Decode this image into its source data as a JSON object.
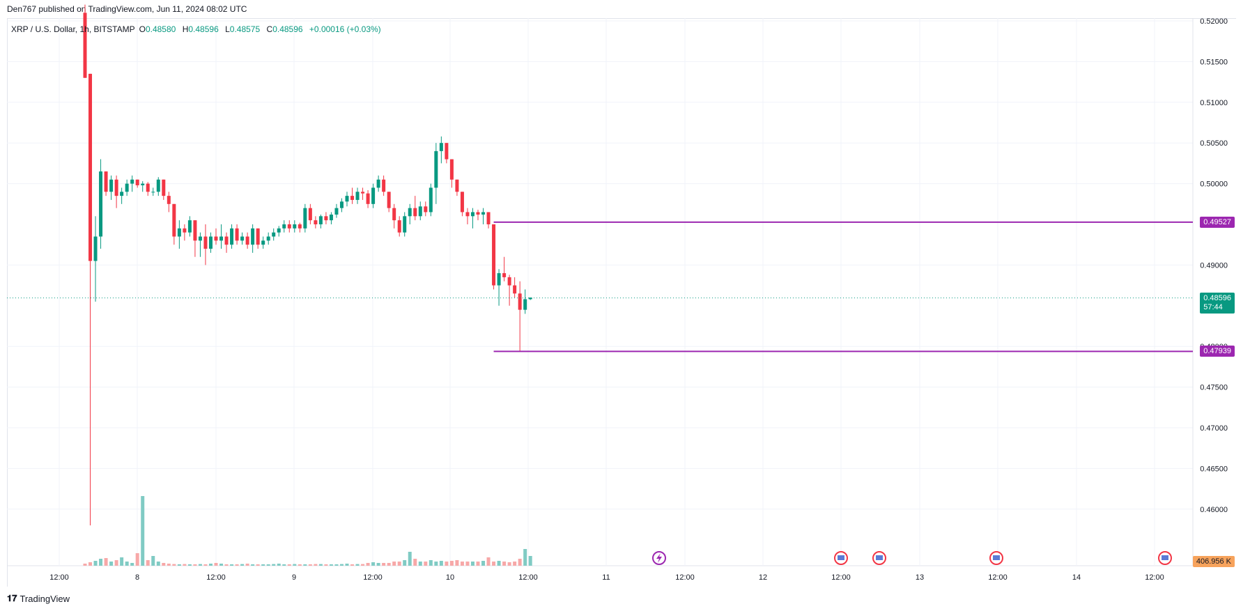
{
  "header": {
    "published": "Den767 published on TradingView.com, Jun 11, 2024 08:02 UTC"
  },
  "legend": {
    "symbol": "XRP / U.S. Dollar, 1h, BITSTAMP",
    "o_label": "O",
    "o_value": "0.48580",
    "h_label": "H",
    "h_value": "0.48596",
    "l_label": "L",
    "l_value": "0.48575",
    "c_label": "C",
    "c_value": "0.48596",
    "change": "+0.00016 (+0.03%)"
  },
  "price_axis": {
    "ticks": [
      "0.52000",
      "0.51500",
      "0.51000",
      "0.50500",
      "0.50000",
      "0.49000",
      "0.48000",
      "0.47500",
      "0.47000",
      "0.46500",
      "0.46000"
    ]
  },
  "time_axis": {
    "ticks": [
      "12:00",
      "8",
      "12:00",
      "9",
      "12:00",
      "10",
      "12:00",
      "11",
      "12:00",
      "12",
      "12:00",
      "13",
      "12:00",
      "14",
      "12:00"
    ]
  },
  "tags": {
    "upper_level": "0.49527",
    "last_price": "0.48596",
    "countdown": "57:44",
    "lower_level": "0.47939",
    "volume": "406.956 K"
  },
  "colors": {
    "up": "#089981",
    "down": "#f23645",
    "level_line": "#9c27b0",
    "vol_up": "#80cbc4",
    "vol_down": "#f7a8a8",
    "grid": "#f0f3fa"
  },
  "footer": {
    "brand": "TradingView"
  },
  "chart_data": {
    "type": "candlestick",
    "symbol": "XRP/USD",
    "interval": "1h",
    "ylim": [
      0.4575,
      0.52
    ],
    "upper_level": 0.49527,
    "lower_level": 0.47939,
    "last_price": 0.48596,
    "candles": [
      [
        0.521,
        0.522,
        0.513,
        0.513
      ],
      [
        0.5135,
        0.5135,
        0.458,
        0.4905
      ],
      [
        0.4905,
        0.496,
        0.4855,
        0.4935
      ],
      [
        0.4935,
        0.503,
        0.492,
        0.5015
      ],
      [
        0.5015,
        0.5015,
        0.4985,
        0.499
      ],
      [
        0.499,
        0.501,
        0.498,
        0.5005
      ],
      [
        0.5005,
        0.501,
        0.497,
        0.4985
      ],
      [
        0.4985,
        0.4995,
        0.4975,
        0.499
      ],
      [
        0.499,
        0.5005,
        0.4985,
        0.5
      ],
      [
        0.5,
        0.501,
        0.499,
        0.5005
      ],
      [
        0.5005,
        0.5005,
        0.4995,
        0.4998
      ],
      [
        0.4998,
        0.5003,
        0.499,
        0.5
      ],
      [
        0.5,
        0.5002,
        0.4985,
        0.499
      ],
      [
        0.499,
        0.4995,
        0.4985,
        0.499
      ],
      [
        0.499,
        0.5008,
        0.4985,
        0.5005
      ],
      [
        0.5005,
        0.5005,
        0.498,
        0.4985
      ],
      [
        0.4985,
        0.499,
        0.4965,
        0.4975
      ],
      [
        0.4975,
        0.4975,
        0.4925,
        0.4935
      ],
      [
        0.4935,
        0.4955,
        0.492,
        0.4945
      ],
      [
        0.4945,
        0.495,
        0.493,
        0.494
      ],
      [
        0.494,
        0.496,
        0.4935,
        0.4955
      ],
      [
        0.4955,
        0.4955,
        0.491,
        0.493
      ],
      [
        0.493,
        0.494,
        0.491,
        0.4935
      ],
      [
        0.4935,
        0.495,
        0.49,
        0.492
      ],
      [
        0.492,
        0.494,
        0.4915,
        0.4935
      ],
      [
        0.4935,
        0.4945,
        0.4925,
        0.493
      ],
      [
        0.493,
        0.495,
        0.492,
        0.4935
      ],
      [
        0.4935,
        0.494,
        0.4915,
        0.4925
      ],
      [
        0.4925,
        0.495,
        0.492,
        0.4945
      ],
      [
        0.4945,
        0.495,
        0.4925,
        0.493
      ],
      [
        0.493,
        0.494,
        0.4925,
        0.4935
      ],
      [
        0.4935,
        0.494,
        0.492,
        0.4925
      ],
      [
        0.4925,
        0.495,
        0.4915,
        0.4945
      ],
      [
        0.4945,
        0.4945,
        0.492,
        0.4925
      ],
      [
        0.4925,
        0.4935,
        0.492,
        0.493
      ],
      [
        0.493,
        0.494,
        0.4925,
        0.4935
      ],
      [
        0.4935,
        0.4945,
        0.493,
        0.494
      ],
      [
        0.494,
        0.4948,
        0.4935,
        0.4945
      ],
      [
        0.4945,
        0.4955,
        0.494,
        0.495
      ],
      [
        0.495,
        0.4955,
        0.494,
        0.4945
      ],
      [
        0.4945,
        0.4955,
        0.494,
        0.495
      ],
      [
        0.495,
        0.4952,
        0.494,
        0.4945
      ],
      [
        0.4945,
        0.4975,
        0.494,
        0.497
      ],
      [
        0.497,
        0.4975,
        0.495,
        0.4955
      ],
      [
        0.4955,
        0.496,
        0.4945,
        0.495
      ],
      [
        0.495,
        0.4962,
        0.4945,
        0.496
      ],
      [
        0.496,
        0.4965,
        0.495,
        0.4955
      ],
      [
        0.4955,
        0.4965,
        0.495,
        0.4962
      ],
      [
        0.4962,
        0.4975,
        0.4958,
        0.497
      ],
      [
        0.497,
        0.4982,
        0.4965,
        0.4978
      ],
      [
        0.4978,
        0.499,
        0.4972,
        0.4985
      ],
      [
        0.4985,
        0.4995,
        0.4975,
        0.498
      ],
      [
        0.498,
        0.4995,
        0.4975,
        0.499
      ],
      [
        0.499,
        0.4995,
        0.498,
        0.4988
      ],
      [
        0.4988,
        0.4992,
        0.497,
        0.4975
      ],
      [
        0.4975,
        0.5,
        0.497,
        0.4995
      ],
      [
        0.4995,
        0.501,
        0.499,
        0.5005
      ],
      [
        0.5005,
        0.501,
        0.4985,
        0.499
      ],
      [
        0.499,
        0.499,
        0.4965,
        0.497
      ],
      [
        0.497,
        0.4975,
        0.4945,
        0.4955
      ],
      [
        0.4955,
        0.496,
        0.4935,
        0.494
      ],
      [
        0.494,
        0.4965,
        0.4935,
        0.496
      ],
      [
        0.496,
        0.4975,
        0.495,
        0.497
      ],
      [
        0.497,
        0.4985,
        0.4955,
        0.496
      ],
      [
        0.496,
        0.4978,
        0.4955,
        0.4972
      ],
      [
        0.4972,
        0.4978,
        0.496,
        0.4965
      ],
      [
        0.4965,
        0.5,
        0.496,
        0.4995
      ],
      [
        0.4995,
        0.505,
        0.4975,
        0.504
      ],
      [
        0.504,
        0.5058,
        0.5025,
        0.505
      ],
      [
        0.505,
        0.505,
        0.5025,
        0.503
      ],
      [
        0.503,
        0.503,
        0.4995,
        0.5005
      ],
      [
        0.5005,
        0.5005,
        0.4985,
        0.499
      ],
      [
        0.499,
        0.499,
        0.496,
        0.4965
      ],
      [
        0.4965,
        0.497,
        0.495,
        0.496
      ],
      [
        0.496,
        0.497,
        0.4945,
        0.4965
      ],
      [
        0.4965,
        0.4968,
        0.4955,
        0.4962
      ],
      [
        0.4962,
        0.497,
        0.495,
        0.4965
      ],
      [
        0.4965,
        0.4965,
        0.4945,
        0.495
      ],
      [
        0.495,
        0.495,
        0.487,
        0.4875
      ],
      [
        0.4875,
        0.4895,
        0.485,
        0.489
      ],
      [
        0.489,
        0.491,
        0.488,
        0.4885
      ],
      [
        0.4885,
        0.4888,
        0.485,
        0.4875
      ],
      [
        0.4875,
        0.4885,
        0.486,
        0.4865
      ],
      [
        0.4865,
        0.488,
        0.4794,
        0.4845
      ],
      [
        0.4845,
        0.487,
        0.484,
        0.4858
      ],
      [
        0.4858,
        0.486,
        0.4857,
        0.486
      ]
    ],
    "volume_rel": [
      0.15,
      0.25,
      0.35,
      0.5,
      0.55,
      0.3,
      0.4,
      0.6,
      0.3,
      0.2,
      0.9,
      5.0,
      0.4,
      0.7,
      0.3,
      0.2,
      0.15,
      0.12,
      0.1,
      0.12,
      0.1,
      0.1,
      0.12,
      0.1,
      0.15,
      0.2,
      0.15,
      0.1,
      0.1,
      0.1,
      0.12,
      0.15,
      0.1,
      0.1,
      0.1,
      0.1,
      0.12,
      0.15,
      0.1,
      0.1,
      0.12,
      0.1,
      0.1,
      0.1,
      0.12,
      0.12,
      0.1,
      0.1,
      0.1,
      0.12,
      0.15,
      0.1,
      0.12,
      0.12,
      0.2,
      0.25,
      0.2,
      0.2,
      0.2,
      0.3,
      0.3,
      0.4,
      1.0,
      0.5,
      0.3,
      0.3,
      0.4,
      0.3,
      0.35,
      0.3,
      0.35,
      0.4,
      0.3,
      0.3,
      0.3,
      0.3,
      0.35,
      0.6,
      0.3,
      0.35,
      0.3,
      0.25,
      0.3,
      0.5,
      1.2,
      0.7
    ]
  }
}
